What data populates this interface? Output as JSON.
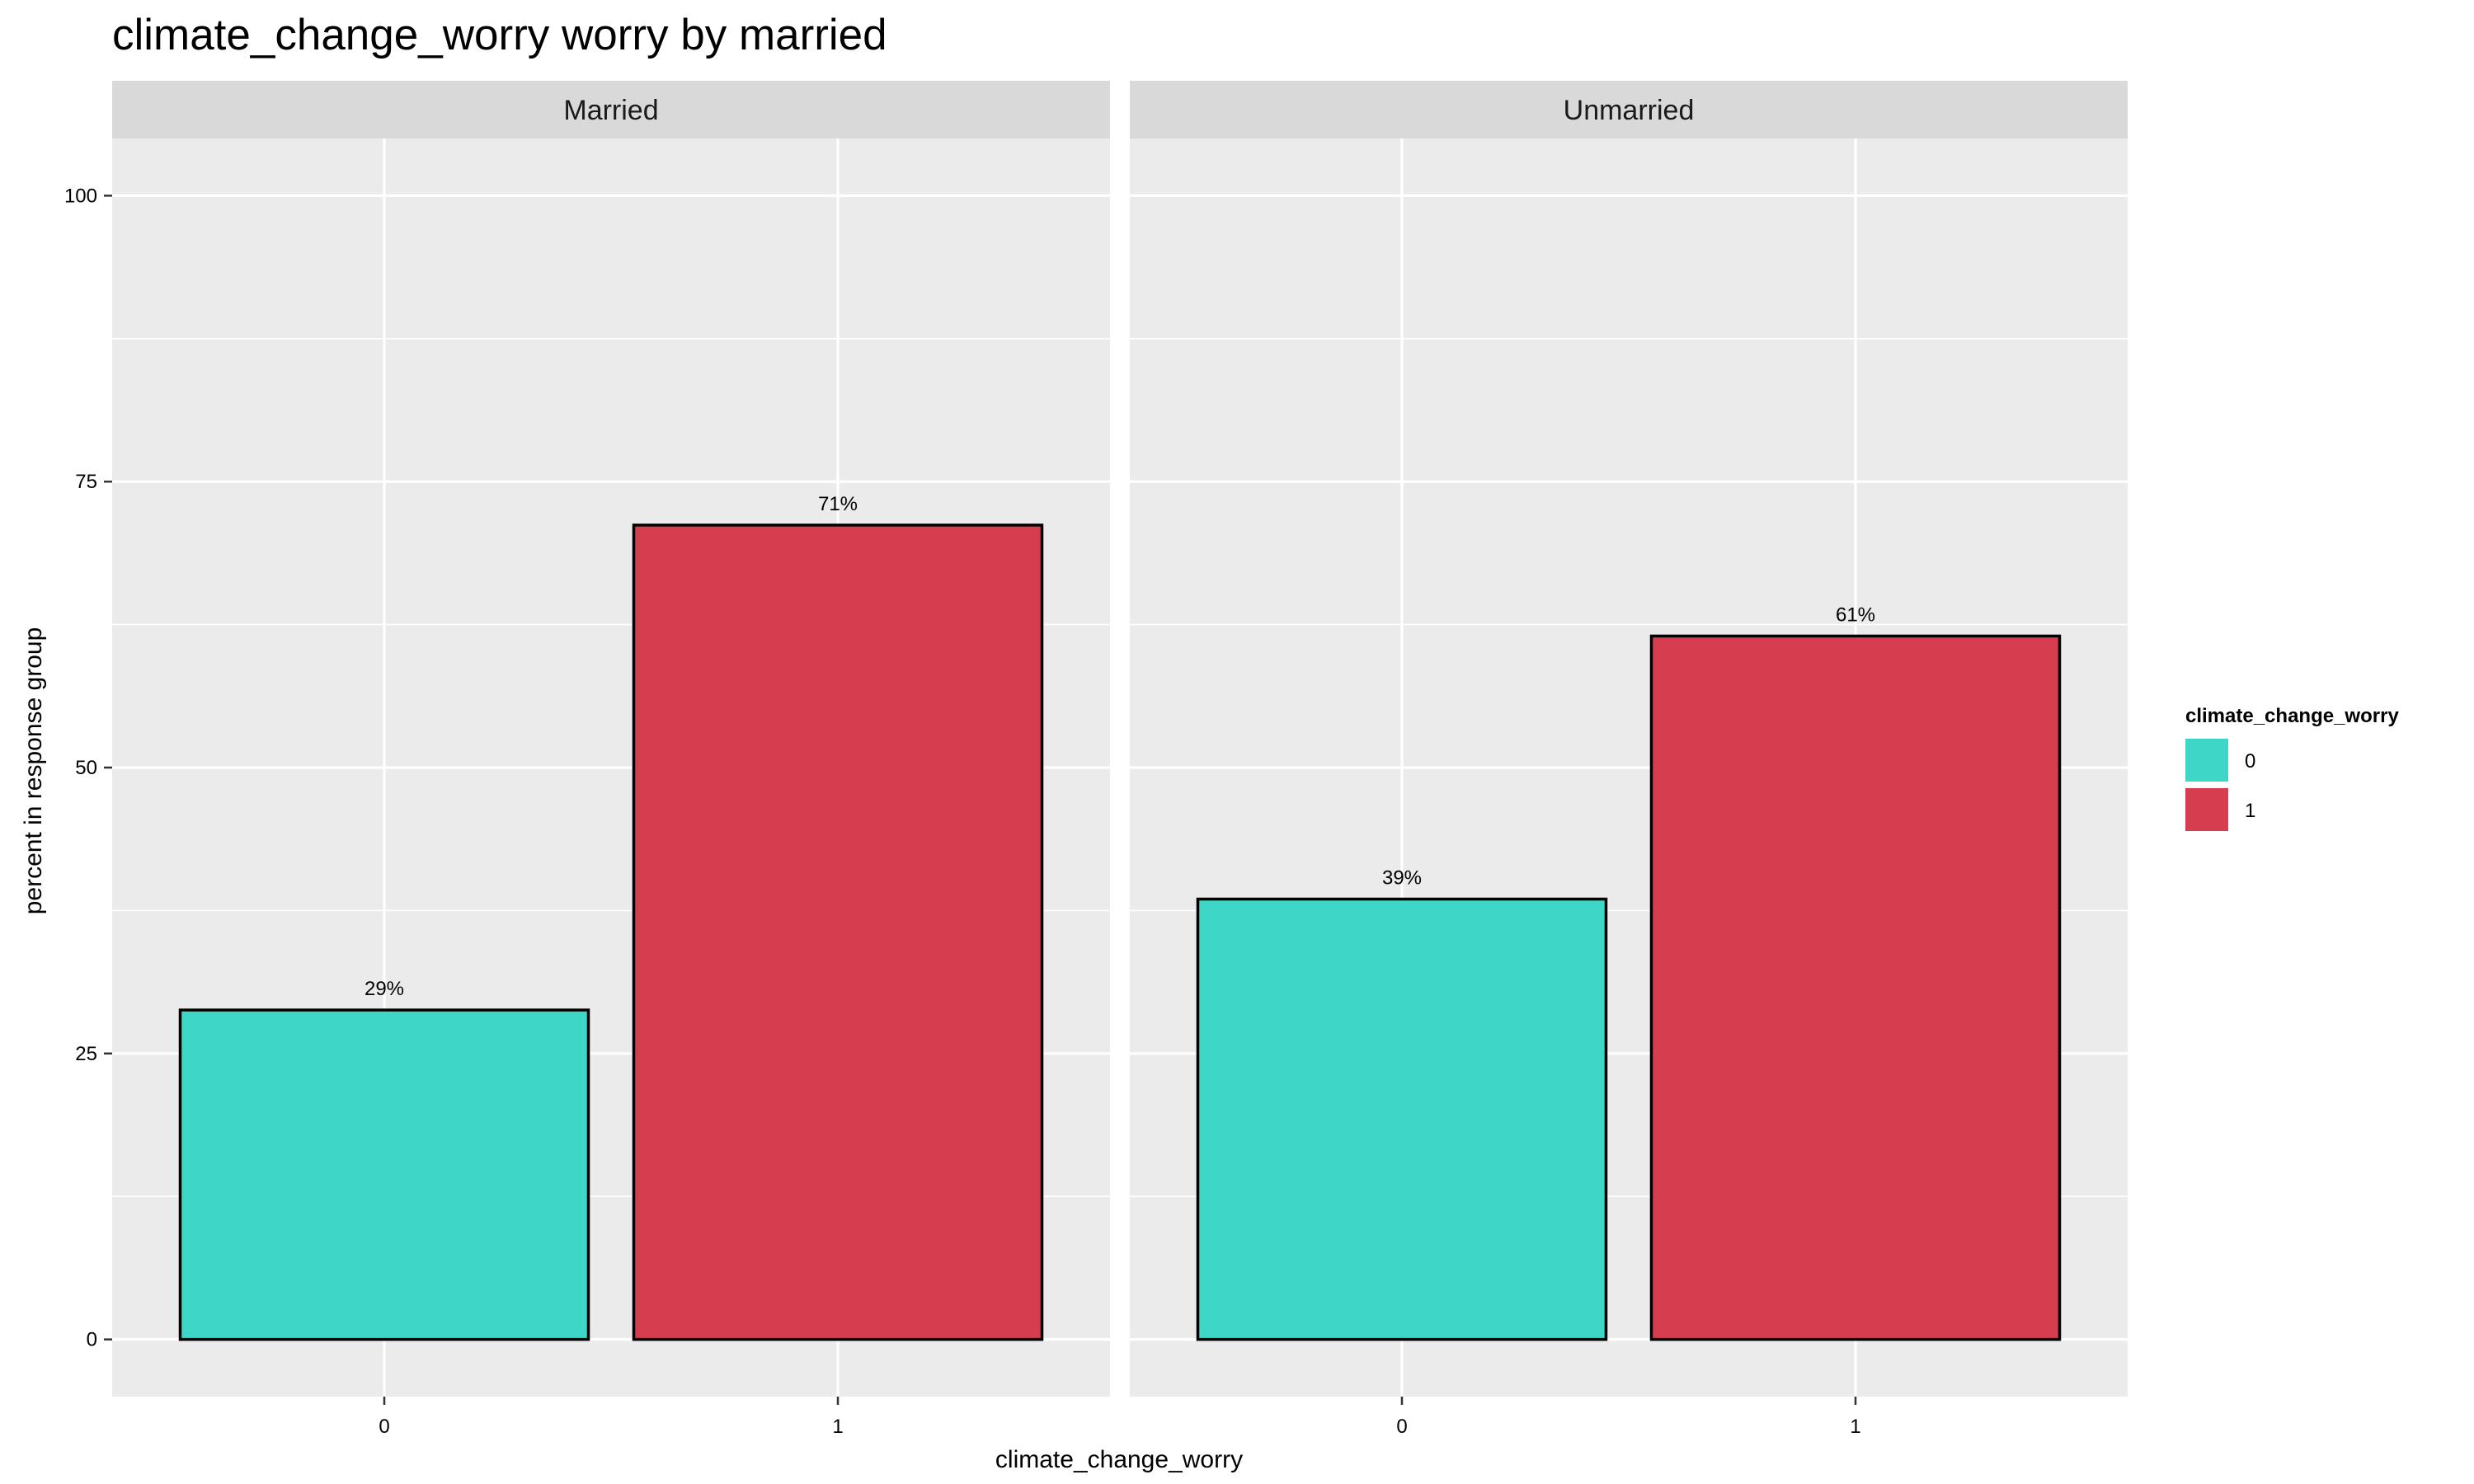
{
  "chart_data": {
    "type": "bar",
    "title": "climate_change_worry worry by married",
    "xlabel": "climate_change_worry",
    "ylabel": "percent in response group",
    "ylim": [
      -5,
      105
    ],
    "yticks": [
      0,
      25,
      50,
      75,
      100
    ],
    "y_tick_labels": [
      "0",
      "25",
      "50",
      "75",
      "100"
    ],
    "categories": [
      "0",
      "1"
    ],
    "grid": true,
    "legend": {
      "title": "climate_change_worry",
      "placement": "right",
      "items": [
        {
          "label": "0",
          "color": "#3ED6C6"
        },
        {
          "label": "1",
          "color": "#D63E50"
        }
      ]
    },
    "facets": [
      {
        "label": "Married",
        "bars": [
          {
            "category": "0",
            "value": 28.8,
            "label": "29%",
            "color": "#3ED6C6"
          },
          {
            "category": "1",
            "value": 71.2,
            "label": "71%",
            "color": "#D63E50"
          }
        ]
      },
      {
        "label": "Unmarried",
        "bars": [
          {
            "category": "0",
            "value": 38.5,
            "label": "39%",
            "color": "#3ED6C6"
          },
          {
            "category": "1",
            "value": 61.5,
            "label": "61%",
            "color": "#D63E50"
          }
        ]
      }
    ]
  }
}
